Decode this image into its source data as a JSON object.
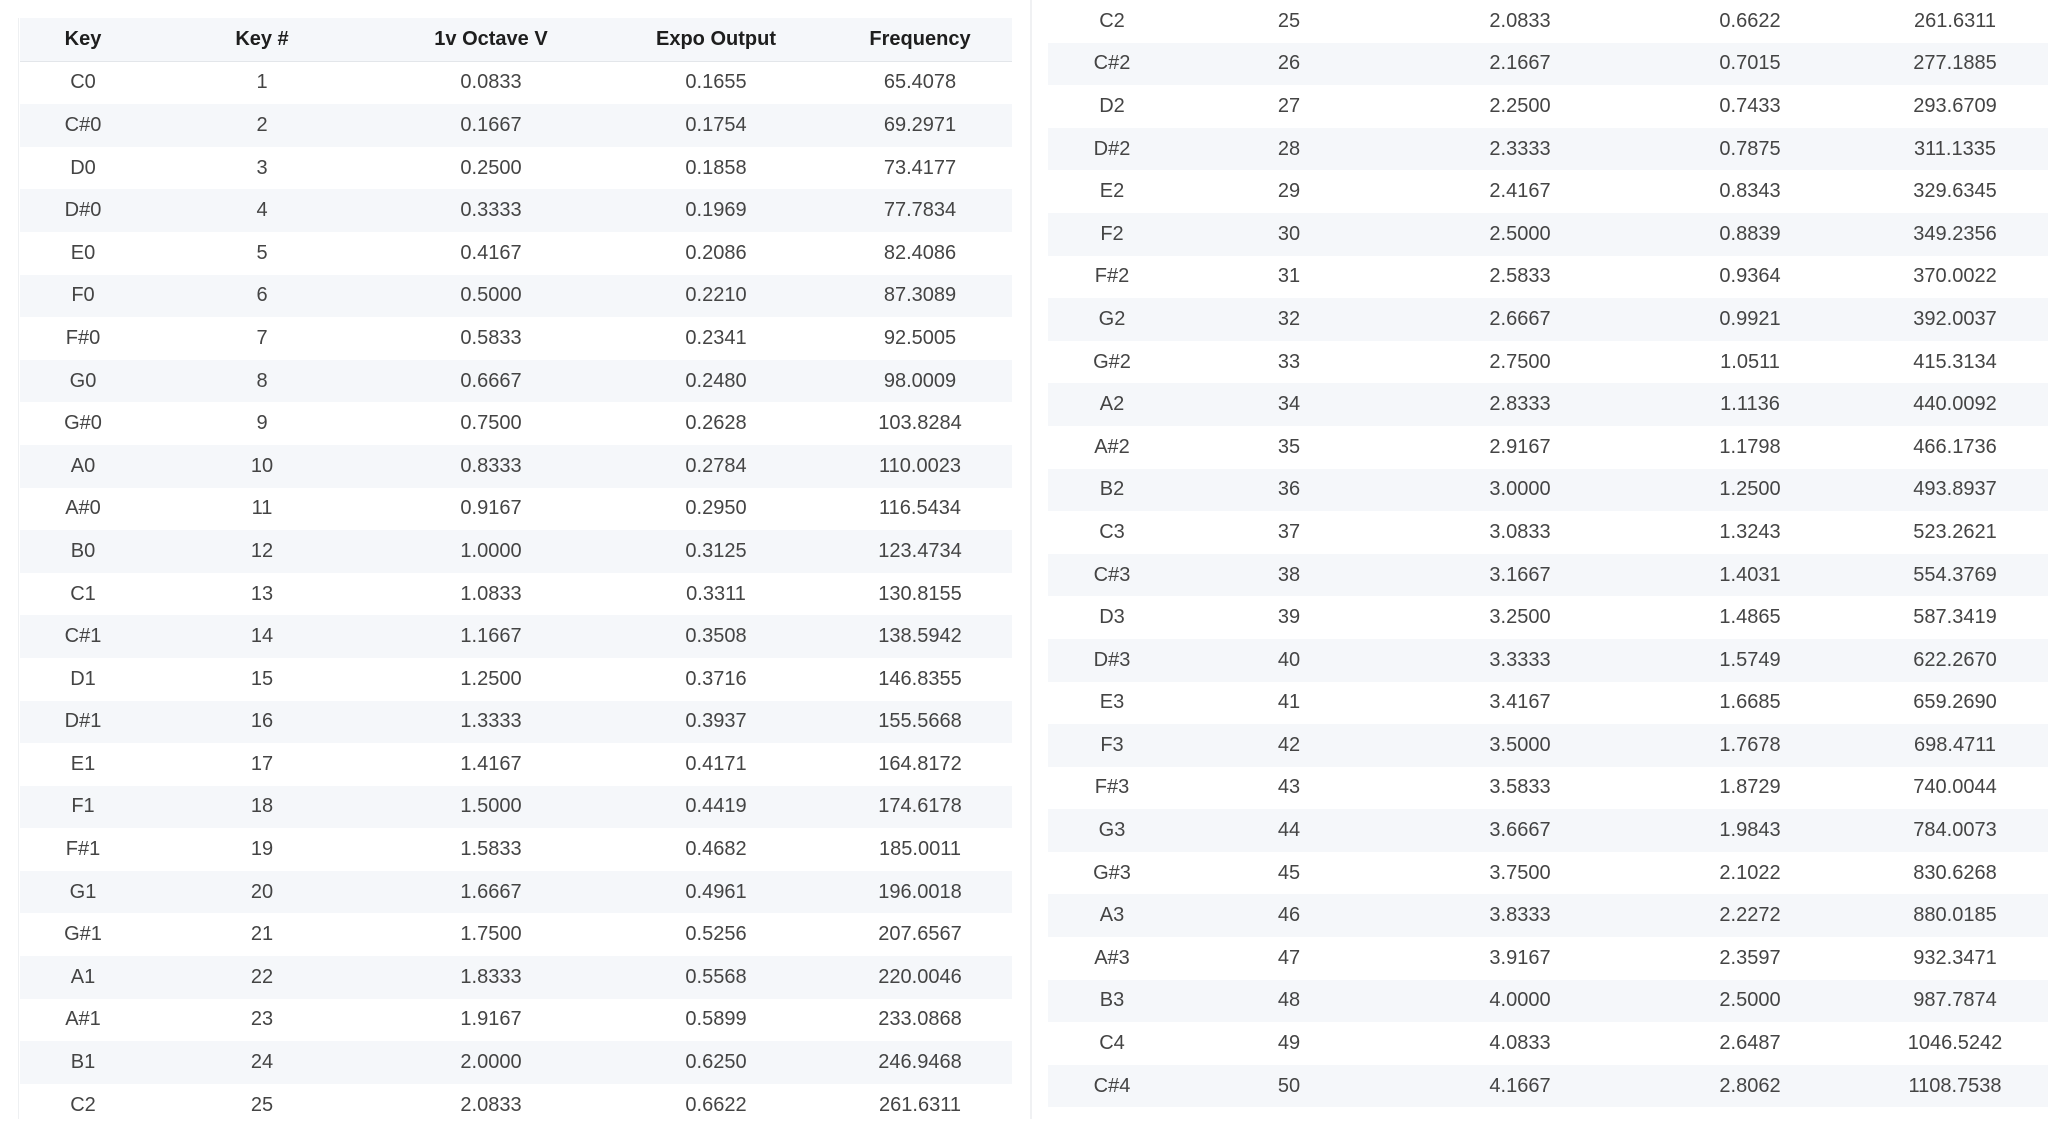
{
  "left_table": {
    "headers": [
      "Key",
      "Key #",
      "1v Octave V",
      "Expo Output",
      "Frequency"
    ],
    "rows": [
      [
        "C0",
        "1",
        "0.0833",
        "0.1655",
        "65.4078"
      ],
      [
        "C#0",
        "2",
        "0.1667",
        "0.1754",
        "69.2971"
      ],
      [
        "D0",
        "3",
        "0.2500",
        "0.1858",
        "73.4177"
      ],
      [
        "D#0",
        "4",
        "0.3333",
        "0.1969",
        "77.7834"
      ],
      [
        "E0",
        "5",
        "0.4167",
        "0.2086",
        "82.4086"
      ],
      [
        "F0",
        "6",
        "0.5000",
        "0.2210",
        "87.3089"
      ],
      [
        "F#0",
        "7",
        "0.5833",
        "0.2341",
        "92.5005"
      ],
      [
        "G0",
        "8",
        "0.6667",
        "0.2480",
        "98.0009"
      ],
      [
        "G#0",
        "9",
        "0.7500",
        "0.2628",
        "103.8284"
      ],
      [
        "A0",
        "10",
        "0.8333",
        "0.2784",
        "110.0023"
      ],
      [
        "A#0",
        "11",
        "0.9167",
        "0.2950",
        "116.5434"
      ],
      [
        "B0",
        "12",
        "1.0000",
        "0.3125",
        "123.4734"
      ],
      [
        "C1",
        "13",
        "1.0833",
        "0.3311",
        "130.8155"
      ],
      [
        "C#1",
        "14",
        "1.1667",
        "0.3508",
        "138.5942"
      ],
      [
        "D1",
        "15",
        "1.2500",
        "0.3716",
        "146.8355"
      ],
      [
        "D#1",
        "16",
        "1.3333",
        "0.3937",
        "155.5668"
      ],
      [
        "E1",
        "17",
        "1.4167",
        "0.4171",
        "164.8172"
      ],
      [
        "F1",
        "18",
        "1.5000",
        "0.4419",
        "174.6178"
      ],
      [
        "F#1",
        "19",
        "1.5833",
        "0.4682",
        "185.0011"
      ],
      [
        "G1",
        "20",
        "1.6667",
        "0.4961",
        "196.0018"
      ],
      [
        "G#1",
        "21",
        "1.7500",
        "0.5256",
        "207.6567"
      ],
      [
        "A1",
        "22",
        "1.8333",
        "0.5568",
        "220.0046"
      ],
      [
        "A#1",
        "23",
        "1.9167",
        "0.5899",
        "233.0868"
      ],
      [
        "B1",
        "24",
        "2.0000",
        "0.6250",
        "246.9468"
      ],
      [
        "C2",
        "25",
        "2.0833",
        "0.6622",
        "261.6311"
      ]
    ]
  },
  "right_table": {
    "rows": [
      [
        "C2",
        "25",
        "2.0833",
        "0.6622",
        "261.6311"
      ],
      [
        "C#2",
        "26",
        "2.1667",
        "0.7015",
        "277.1885"
      ],
      [
        "D2",
        "27",
        "2.2500",
        "0.7433",
        "293.6709"
      ],
      [
        "D#2",
        "28",
        "2.3333",
        "0.7875",
        "311.1335"
      ],
      [
        "E2",
        "29",
        "2.4167",
        "0.8343",
        "329.6345"
      ],
      [
        "F2",
        "30",
        "2.5000",
        "0.8839",
        "349.2356"
      ],
      [
        "F#2",
        "31",
        "2.5833",
        "0.9364",
        "370.0022"
      ],
      [
        "G2",
        "32",
        "2.6667",
        "0.9921",
        "392.0037"
      ],
      [
        "G#2",
        "33",
        "2.7500",
        "1.0511",
        "415.3134"
      ],
      [
        "A2",
        "34",
        "2.8333",
        "1.1136",
        "440.0092"
      ],
      [
        "A#2",
        "35",
        "2.9167",
        "1.1798",
        "466.1736"
      ],
      [
        "B2",
        "36",
        "3.0000",
        "1.2500",
        "493.8937"
      ],
      [
        "C3",
        "37",
        "3.0833",
        "1.3243",
        "523.2621"
      ],
      [
        "C#3",
        "38",
        "3.1667",
        "1.4031",
        "554.3769"
      ],
      [
        "D3",
        "39",
        "3.2500",
        "1.4865",
        "587.3419"
      ],
      [
        "D#3",
        "40",
        "3.3333",
        "1.5749",
        "622.2670"
      ],
      [
        "E3",
        "41",
        "3.4167",
        "1.6685",
        "659.2690"
      ],
      [
        "F3",
        "42",
        "3.5000",
        "1.7678",
        "698.4711"
      ],
      [
        "F#3",
        "43",
        "3.5833",
        "1.8729",
        "740.0044"
      ],
      [
        "G3",
        "44",
        "3.6667",
        "1.9843",
        "784.0073"
      ],
      [
        "G#3",
        "45",
        "3.7500",
        "2.1022",
        "830.6268"
      ],
      [
        "A3",
        "46",
        "3.8333",
        "2.2272",
        "880.0185"
      ],
      [
        "A#3",
        "47",
        "3.9167",
        "2.3597",
        "932.3471"
      ],
      [
        "B3",
        "48",
        "4.0000",
        "2.5000",
        "987.7874"
      ],
      [
        "C4",
        "49",
        "4.0833",
        "2.6487",
        "1046.5242"
      ],
      [
        "C#4",
        "50",
        "4.1667",
        "2.8062",
        "1108.7538"
      ]
    ]
  }
}
